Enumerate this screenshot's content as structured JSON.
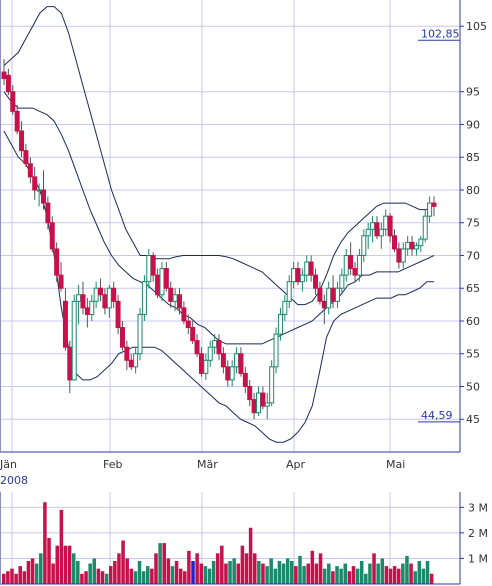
{
  "chart_data": {
    "type": "candlestick",
    "year_label": "2008",
    "x_ticks": [
      "Jän",
      "Feb",
      "Mär",
      "Apr",
      "Mai"
    ],
    "y_ticks": [
      45,
      50,
      55,
      60,
      65,
      70,
      75,
      80,
      85,
      90,
      95,
      105
    ],
    "ylim": [
      40,
      109
    ],
    "volume_ticks": [
      "1 M",
      "2 M",
      "3 M"
    ],
    "volume_ylim": [
      0,
      3.6
    ],
    "price_markers": [
      {
        "label": "102,85",
        "value": 102.85
      },
      {
        "label": "44,59",
        "value": 44.59
      }
    ],
    "colors": {
      "up": "#1a8a6a",
      "down": "#c8104a",
      "band": "#1a2a5a",
      "grid": "#c8c8f0",
      "axis": "#2a3aa0",
      "volume_highlight": "#2222cc"
    },
    "grid": true,
    "bollinger_bands": {
      "upper": [
        99,
        100,
        101,
        103,
        105,
        107,
        108,
        108,
        107,
        104,
        100,
        96,
        92,
        88,
        84,
        80,
        77,
        74,
        72,
        70,
        70,
        69.5,
        69.5,
        69.5,
        69.8,
        70,
        70,
        70,
        70,
        70,
        70,
        69.8,
        69.5,
        69,
        68.5,
        68,
        67.5,
        66.5,
        65.5,
        64.5,
        63.5,
        62.5,
        62.5,
        63,
        64.5,
        67,
        70,
        72,
        73.5,
        74.5,
        75.5,
        76.5,
        77.5,
        78,
        78,
        78,
        78,
        77.5,
        77,
        77,
        78
      ],
      "middle": [
        95,
        93.5,
        92.5,
        92.5,
        92.5,
        92,
        91.5,
        90.5,
        88.5,
        86,
        83,
        80,
        77,
        74.5,
        72,
        70,
        68.5,
        67.5,
        66.5,
        66,
        65.5,
        64.5,
        63.5,
        62.5,
        62,
        61,
        60.5,
        59.5,
        59,
        58,
        57,
        56.5,
        56.5,
        56.5,
        56.5,
        56.5,
        56.5,
        57,
        57.5,
        58,
        58.5,
        59,
        59.5,
        60,
        61,
        62,
        63,
        64,
        65.5,
        66,
        67,
        67,
        67.5,
        67.5,
        67.5,
        67.5,
        68,
        68.5,
        69,
        69.5,
        70
      ],
      "lower": [
        89,
        87,
        85,
        84,
        82,
        80,
        76,
        70,
        62,
        56,
        52,
        51,
        51,
        51.5,
        52.5,
        53.5,
        55,
        55.5,
        56,
        56,
        56,
        56,
        55.5,
        54.5,
        53.5,
        52.5,
        51.5,
        50.5,
        49.5,
        48.5,
        47.5,
        47,
        46,
        45,
        44.5,
        44,
        43,
        42,
        41.5,
        41.5,
        42,
        43,
        44.5,
        47,
        52,
        57.5,
        60,
        61,
        61.5,
        62,
        62.5,
        63,
        63.5,
        63.5,
        63.5,
        64,
        64,
        64.5,
        65,
        66,
        66
      ]
    },
    "candles": [
      {
        "o": 98,
        "h": 100,
        "l": 96,
        "c": 97
      },
      {
        "o": 97.5,
        "h": 98.5,
        "l": 94.5,
        "c": 95
      },
      {
        "o": 95,
        "h": 96,
        "l": 91.5,
        "c": 92
      },
      {
        "o": 92,
        "h": 93,
        "l": 88.5,
        "c": 89
      },
      {
        "o": 89,
        "h": 90.5,
        "l": 85,
        "c": 86
      },
      {
        "o": 86,
        "h": 87,
        "l": 83.5,
        "c": 84
      },
      {
        "o": 84,
        "h": 85,
        "l": 81,
        "c": 82
      },
      {
        "o": 82,
        "h": 83.5,
        "l": 78.5,
        "c": 80
      },
      {
        "o": 80,
        "h": 81,
        "l": 77.5,
        "c": 80
      },
      {
        "o": 80,
        "h": 83,
        "l": 77,
        "c": 78
      },
      {
        "o": 78,
        "h": 79,
        "l": 74,
        "c": 75
      },
      {
        "o": 75,
        "h": 76,
        "l": 70.5,
        "c": 71
      },
      {
        "o": 71,
        "h": 72,
        "l": 66,
        "c": 67
      },
      {
        "o": 67,
        "h": 69,
        "l": 64.5,
        "c": 65
      },
      {
        "o": 63,
        "h": 65,
        "l": 55.5,
        "c": 56
      },
      {
        "o": 56,
        "h": 57,
        "l": 49,
        "c": 51
      },
      {
        "o": 51,
        "h": 64,
        "l": 51,
        "c": 63
      },
      {
        "o": 63,
        "h": 65.5,
        "l": 59.5,
        "c": 64
      },
      {
        "o": 64,
        "h": 66,
        "l": 61,
        "c": 62
      },
      {
        "o": 62,
        "h": 63.5,
        "l": 59,
        "c": 61
      },
      {
        "o": 61,
        "h": 64,
        "l": 60,
        "c": 63
      },
      {
        "o": 63,
        "h": 66,
        "l": 62,
        "c": 65
      },
      {
        "o": 65,
        "h": 66.5,
        "l": 63,
        "c": 64
      },
      {
        "o": 64,
        "h": 65,
        "l": 61,
        "c": 62
      },
      {
        "o": 62,
        "h": 65.5,
        "l": 60.5,
        "c": 65
      },
      {
        "o": 65,
        "h": 66,
        "l": 62,
        "c": 63
      },
      {
        "o": 63,
        "h": 64,
        "l": 58,
        "c": 59
      },
      {
        "o": 59,
        "h": 60,
        "l": 55.5,
        "c": 56
      },
      {
        "o": 56,
        "h": 57,
        "l": 52.5,
        "c": 54
      },
      {
        "o": 54,
        "h": 55,
        "l": 52.5,
        "c": 53
      },
      {
        "o": 53,
        "h": 56,
        "l": 52,
        "c": 55
      },
      {
        "o": 55,
        "h": 62,
        "l": 54,
        "c": 61
      },
      {
        "o": 61,
        "h": 67,
        "l": 60,
        "c": 66
      },
      {
        "o": 66,
        "h": 71,
        "l": 65,
        "c": 70
      },
      {
        "o": 70,
        "h": 70.5,
        "l": 66,
        "c": 67
      },
      {
        "o": 67,
        "h": 68,
        "l": 63.5,
        "c": 64
      },
      {
        "o": 64,
        "h": 69,
        "l": 63,
        "c": 68
      },
      {
        "o": 68,
        "h": 69,
        "l": 64.5,
        "c": 65
      },
      {
        "o": 65,
        "h": 66,
        "l": 62,
        "c": 63
      },
      {
        "o": 63,
        "h": 65,
        "l": 61.5,
        "c": 64
      },
      {
        "o": 64,
        "h": 65,
        "l": 61,
        "c": 62
      },
      {
        "o": 62,
        "h": 63,
        "l": 59.5,
        "c": 60
      },
      {
        "o": 60,
        "h": 61,
        "l": 58,
        "c": 59
      },
      {
        "o": 59,
        "h": 60,
        "l": 56.5,
        "c": 57
      },
      {
        "o": 57,
        "h": 58,
        "l": 54.5,
        "c": 55
      },
      {
        "o": 55,
        "h": 56,
        "l": 51.5,
        "c": 52
      },
      {
        "o": 52,
        "h": 55,
        "l": 51,
        "c": 54
      },
      {
        "o": 54,
        "h": 57,
        "l": 53,
        "c": 56
      },
      {
        "o": 56,
        "h": 58,
        "l": 55,
        "c": 57
      },
      {
        "o": 57,
        "h": 58,
        "l": 54,
        "c": 55
      },
      {
        "o": 55,
        "h": 56,
        "l": 52,
        "c": 53
      },
      {
        "o": 53,
        "h": 54,
        "l": 50,
        "c": 51
      },
      {
        "o": 51,
        "h": 54,
        "l": 50,
        "c": 53
      },
      {
        "o": 53,
        "h": 56,
        "l": 52,
        "c": 55
      },
      {
        "o": 55,
        "h": 56,
        "l": 51.5,
        "c": 52
      },
      {
        "o": 52,
        "h": 53,
        "l": 49,
        "c": 50
      },
      {
        "o": 50,
        "h": 51,
        "l": 47,
        "c": 48
      },
      {
        "o": 48,
        "h": 49,
        "l": 45,
        "c": 46
      },
      {
        "o": 46,
        "h": 50,
        "l": 45.5,
        "c": 49
      },
      {
        "o": 49,
        "h": 50,
        "l": 46.5,
        "c": 47
      },
      {
        "o": 47,
        "h": 49,
        "l": 45,
        "c": 47.5
      },
      {
        "o": 47.5,
        "h": 54,
        "l": 47,
        "c": 53
      },
      {
        "o": 53,
        "h": 59,
        "l": 52,
        "c": 58
      },
      {
        "o": 58,
        "h": 62,
        "l": 57,
        "c": 61
      },
      {
        "o": 61,
        "h": 64,
        "l": 60,
        "c": 63
      },
      {
        "o": 63,
        "h": 67,
        "l": 62,
        "c": 66
      },
      {
        "o": 66,
        "h": 69,
        "l": 65,
        "c": 68
      },
      {
        "o": 68,
        "h": 69,
        "l": 65.5,
        "c": 66
      },
      {
        "o": 66,
        "h": 68,
        "l": 64.5,
        "c": 67
      },
      {
        "o": 67,
        "h": 70,
        "l": 66,
        "c": 69
      },
      {
        "o": 69,
        "h": 70,
        "l": 66,
        "c": 67
      },
      {
        "o": 67,
        "h": 68,
        "l": 64,
        "c": 65
      },
      {
        "o": 65,
        "h": 66,
        "l": 62.5,
        "c": 63
      },
      {
        "o": 63,
        "h": 64,
        "l": 59.5,
        "c": 62
      },
      {
        "o": 62,
        "h": 66,
        "l": 61,
        "c": 65
      },
      {
        "o": 65,
        "h": 67,
        "l": 62,
        "c": 63
      },
      {
        "o": 63,
        "h": 66,
        "l": 62,
        "c": 65
      },
      {
        "o": 65,
        "h": 68,
        "l": 64,
        "c": 67
      },
      {
        "o": 67,
        "h": 71,
        "l": 66,
        "c": 70
      },
      {
        "o": 70,
        "h": 72,
        "l": 67,
        "c": 68
      },
      {
        "o": 68,
        "h": 69,
        "l": 66,
        "c": 67
      },
      {
        "o": 67,
        "h": 71,
        "l": 66,
        "c": 70
      },
      {
        "o": 70,
        "h": 74,
        "l": 69,
        "c": 73
      },
      {
        "o": 73,
        "h": 75,
        "l": 71,
        "c": 74
      },
      {
        "o": 74,
        "h": 76,
        "l": 72,
        "c": 75
      },
      {
        "o": 75,
        "h": 76,
        "l": 72.5,
        "c": 73
      },
      {
        "o": 73,
        "h": 75,
        "l": 71,
        "c": 74
      },
      {
        "o": 74,
        "h": 77,
        "l": 73,
        "c": 76
      },
      {
        "o": 76,
        "h": 76.5,
        "l": 72,
        "c": 73
      },
      {
        "o": 73,
        "h": 74,
        "l": 70.5,
        "c": 71
      },
      {
        "o": 71,
        "h": 72,
        "l": 68,
        "c": 69
      },
      {
        "o": 69,
        "h": 72,
        "l": 68,
        "c": 71
      },
      {
        "o": 71,
        "h": 73,
        "l": 70,
        "c": 72
      },
      {
        "o": 72,
        "h": 73,
        "l": 70,
        "c": 71
      },
      {
        "o": 71,
        "h": 72,
        "l": 70,
        "c": 71.5
      },
      {
        "o": 71.5,
        "h": 73,
        "l": 70.5,
        "c": 72.5
      },
      {
        "o": 72.5,
        "h": 77,
        "l": 72,
        "c": 76
      },
      {
        "o": 76,
        "h": 79,
        "l": 75,
        "c": 78
      },
      {
        "o": 78,
        "h": 79,
        "l": 76,
        "c": 77.5
      }
    ],
    "volume": [
      0.4,
      0.5,
      0.6,
      0.4,
      0.7,
      0.5,
      0.9,
      1.0,
      0.8,
      1.2,
      3.2,
      1.8,
      0.8,
      1.5,
      2.9,
      1.5,
      1.5,
      1.2,
      0.9,
      0.4,
      0.5,
      0.8,
      1.0,
      0.6,
      0.5,
      0.4,
      0.7,
      0.9,
      1.2,
      1.7,
      1.0,
      0.6,
      0.5,
      0.9,
      0.5,
      0.7,
      0.6,
      1.2,
      1.6,
      1.6,
      1.0,
      0.7,
      0.9,
      0.6,
      0.5,
      1.3,
      0.9,
      1.2,
      0.8,
      0.7,
      0.6,
      0.9,
      1.2,
      1.5,
      0.8,
      0.9,
      1.0,
      0.8,
      1.5,
      1.2,
      2.2,
      1.2,
      0.9,
      0.8,
      0.7,
      1.0,
      0.6,
      0.9,
      0.8,
      1.0,
      0.9,
      0.7,
      1.1,
      0.7,
      0.8,
      1.3,
      0.8,
      1.2,
      0.6,
      0.8,
      0.5,
      0.7,
      0.6,
      0.8,
      0.5,
      0.7,
      0.6,
      0.9,
      0.4,
      0.8,
      1.2,
      0.8,
      1.0,
      0.7,
      0.6,
      0.7,
      0.6,
      0.8,
      1.1,
      0.8,
      0.5,
      0.9,
      0.6,
      0.9,
      0.4
    ],
    "volume_highlight_index": 46
  }
}
